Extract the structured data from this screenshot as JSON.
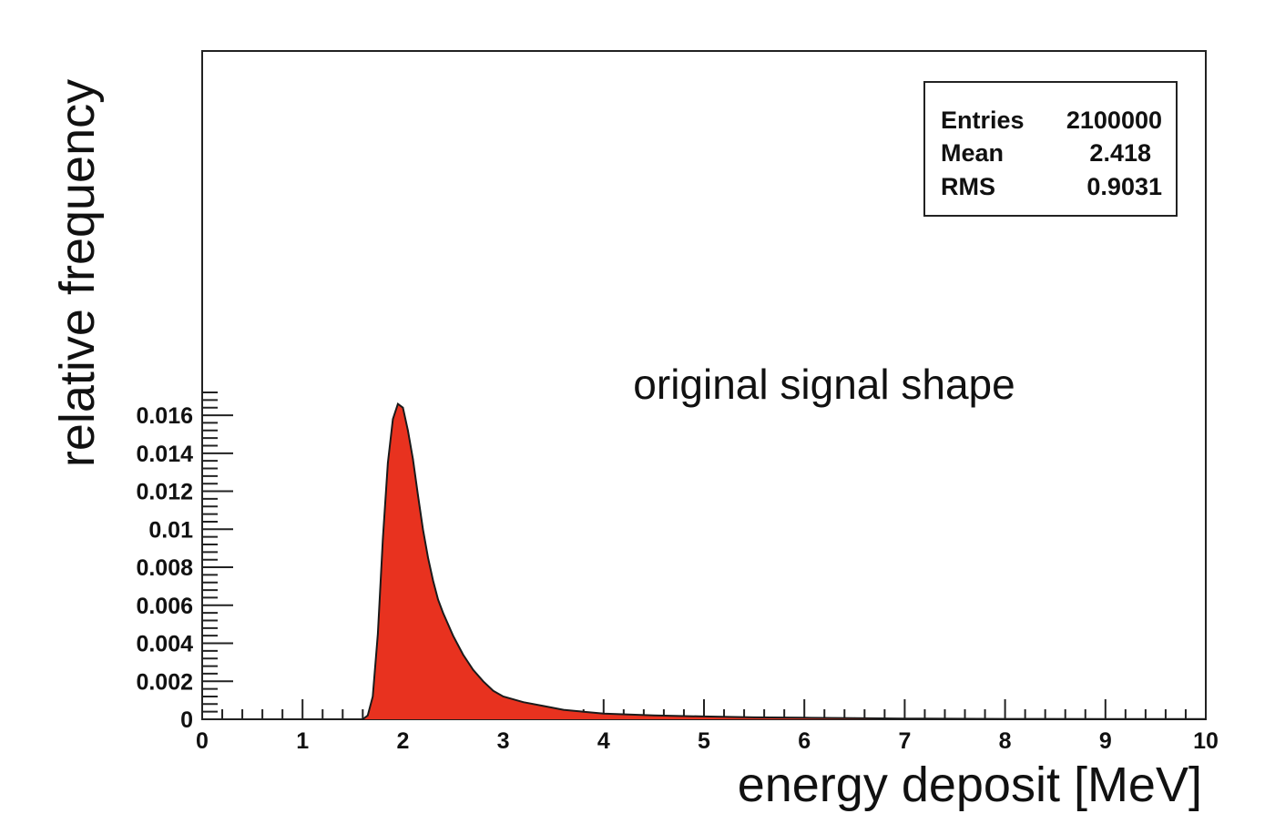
{
  "chart_data": {
    "type": "area",
    "xlabel": "energy deposit [MeV]",
    "ylabel": "relative frequency",
    "annotation": "original signal shape",
    "xlim": [
      0,
      10
    ],
    "ylim": [
      0,
      0.0175
    ],
    "x_ticks": [
      "0",
      "1",
      "2",
      "3",
      "4",
      "5",
      "6",
      "7",
      "8",
      "9",
      "10"
    ],
    "y_ticks": [
      "0",
      "0.002",
      "0.004",
      "0.006",
      "0.008",
      "0.01",
      "0.012",
      "0.014",
      "0.016"
    ],
    "fill_color": "#e8321f",
    "line_color": "#1a1a1a",
    "stats_box": {
      "rows": [
        {
          "label": "Entries",
          "value": "2100000"
        },
        {
          "label": "Mean",
          "value": "2.418"
        },
        {
          "label": "RMS",
          "value": "0.9031"
        }
      ]
    },
    "series": [
      {
        "x": [
          1.6,
          1.65,
          1.7,
          1.75,
          1.8,
          1.85,
          1.9,
          1.95,
          2.0,
          2.05,
          2.1,
          2.15,
          2.2,
          2.25,
          2.3,
          2.35,
          2.4,
          2.45,
          2.5,
          2.55,
          2.6,
          2.7,
          2.8,
          2.9,
          3.0,
          3.2,
          3.4,
          3.6,
          3.8,
          4.0,
          4.5,
          5.0,
          5.5,
          6.0,
          6.5,
          7.0,
          8.0,
          9.0,
          10.0
        ],
        "y": [
          0.0,
          0.0002,
          0.0012,
          0.0045,
          0.0095,
          0.0135,
          0.0158,
          0.0166,
          0.0164,
          0.0152,
          0.0137,
          0.0118,
          0.01,
          0.0085,
          0.0073,
          0.0063,
          0.0056,
          0.005,
          0.0044,
          0.0039,
          0.0034,
          0.0026,
          0.002,
          0.0015,
          0.0012,
          0.0009,
          0.0007,
          0.0005,
          0.0004,
          0.0003,
          0.0002,
          0.00015,
          0.0001,
          8e-05,
          6e-05,
          4e-05,
          2e-05,
          1e-05,
          1e-05
        ]
      }
    ]
  }
}
